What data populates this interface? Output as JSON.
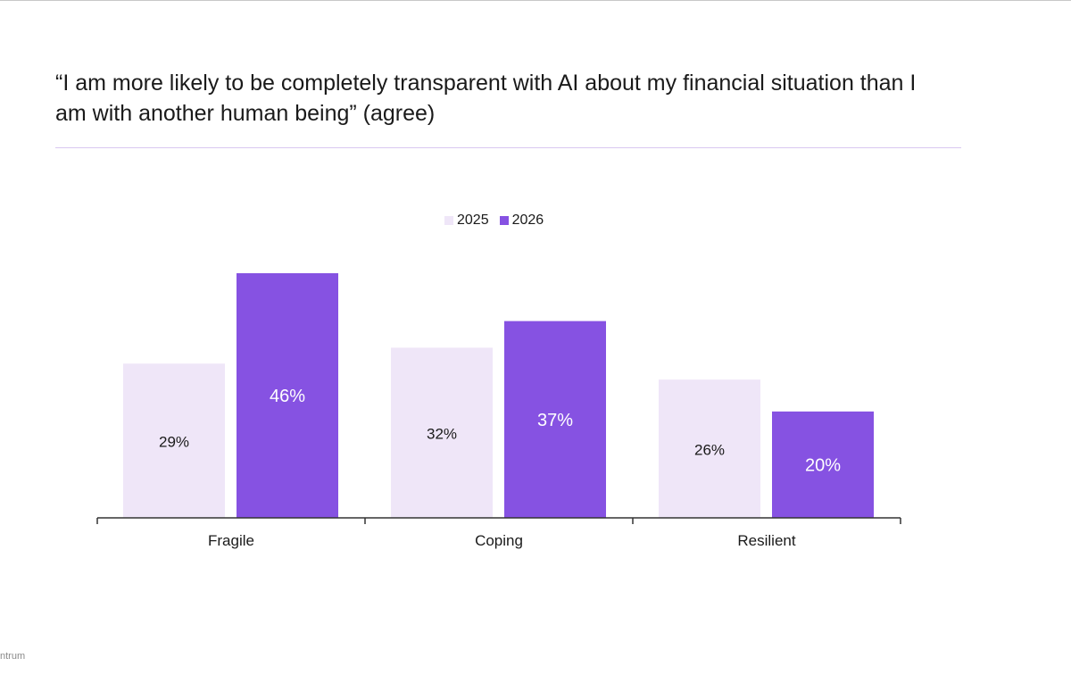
{
  "title": "“I am more likely to be completely transparent with AI about my financial situation than I am with another human being” (agree)",
  "footer": {
    "logo_text": "ntrum"
  },
  "colors": {
    "series_2025": "#efe6f8",
    "series_2026": "#8652e2",
    "axis": "#333333",
    "title_rule": "#d9c8f0"
  },
  "chart_data": {
    "type": "bar",
    "categories": [
      "Fragile",
      "Coping",
      "Resilient"
    ],
    "series": [
      {
        "name": "2025",
        "values": [
          29,
          32,
          26
        ],
        "labels": [
          "29%",
          "32%",
          "26%"
        ],
        "color": "#efe6f8",
        "label_color": "#1a1a1a"
      },
      {
        "name": "2026",
        "values": [
          46,
          37,
          20
        ],
        "labels": [
          "46%",
          "37%",
          "20%"
        ],
        "color": "#8652e2",
        "label_color": "#ffffff"
      }
    ],
    "ylim": [
      0,
      50
    ],
    "legend_position": "top-center",
    "grid": false
  }
}
